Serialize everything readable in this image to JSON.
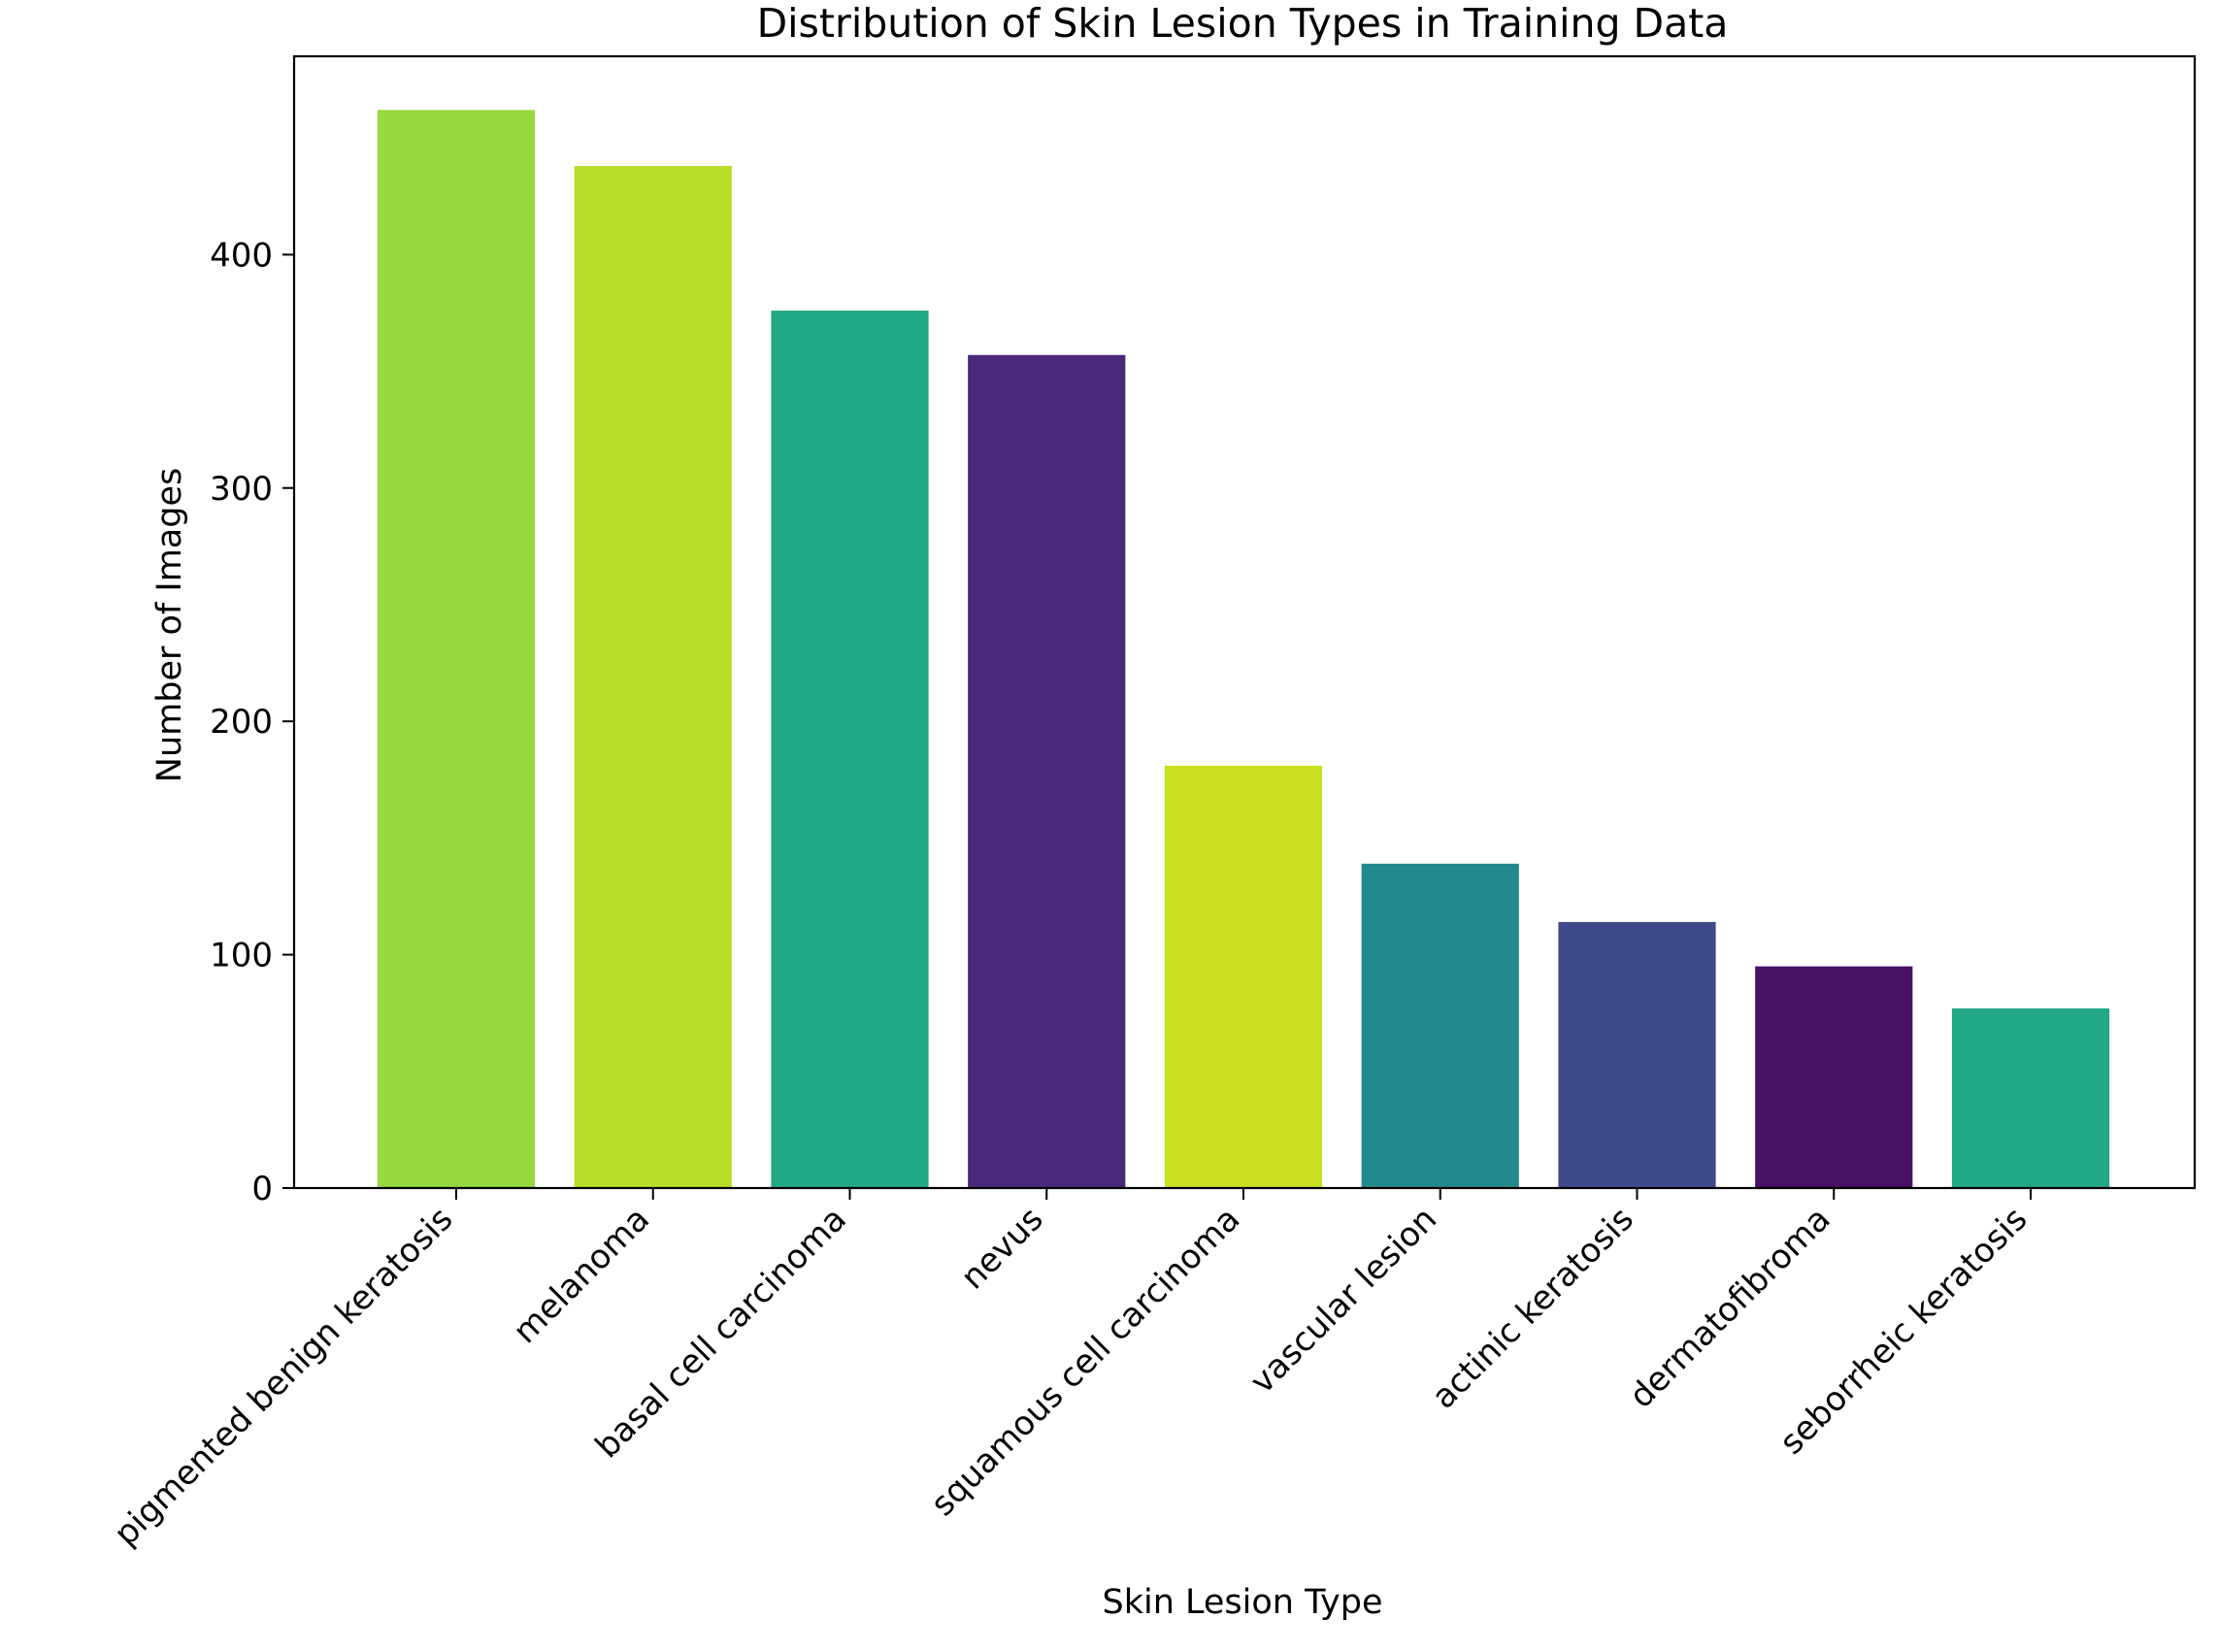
{
  "chart_data": {
    "type": "bar",
    "title": "Distribution of Skin Lesion Types in Training Data",
    "xlabel": "Skin Lesion Type",
    "ylabel": "Number of Images",
    "categories": [
      "pigmented benign keratosis",
      "melanoma",
      "basal cell carcinoma",
      "nevus",
      "squamous cell carcinoma",
      "vascular lesion",
      "actinic keratosis",
      "dermatofibroma",
      "seborrheic keratosis"
    ],
    "values": [
      462,
      438,
      376,
      357,
      181,
      139,
      114,
      95,
      77
    ],
    "colors": [
      "#95d840",
      "#b8de29",
      "#22a884",
      "#482878",
      "#cae11f",
      "#23888e",
      "#3e4a89",
      "#471063",
      "#22a884"
    ],
    "ylim": [
      0,
      485
    ],
    "yticks": [
      0,
      100,
      200,
      300,
      400
    ],
    "grid": false,
    "legend": "none"
  }
}
